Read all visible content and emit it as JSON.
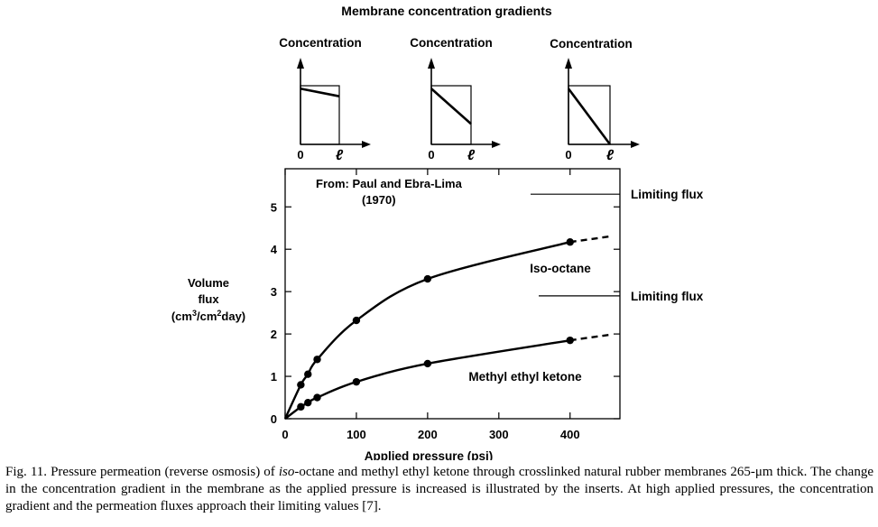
{
  "figure": {
    "title": "Membrane concentration gradients",
    "inserts": [
      {
        "label": "Concentration",
        "axis_start": "0",
        "axis_end": "ℓ",
        "profile": [
          0.95,
          0.82
        ]
      },
      {
        "label": "Concentration",
        "axis_start": "0",
        "axis_end": "ℓ",
        "profile": [
          0.95,
          0.35
        ]
      },
      {
        "label": "Concentration",
        "axis_start": "0",
        "axis_end": "ℓ",
        "profile": [
          0.95,
          0.0
        ]
      }
    ]
  },
  "chart_data": {
    "type": "line",
    "source_note": [
      "From: Paul and Ebra-Lima",
      "(1970)"
    ],
    "xlabel": "Applied pressure (psi)",
    "ylabel": [
      "Volume",
      "flux"
    ],
    "ylabel_unit": {
      "a": "(cm",
      "sup1": "3",
      "b": "/cm",
      "sup2": "2",
      "c": "day)"
    },
    "xlim": [
      0,
      470
    ],
    "ylim": [
      0,
      5.9
    ],
    "xticks": [
      0,
      100,
      200,
      300,
      400
    ],
    "yticks": [
      0,
      1,
      2,
      3,
      4,
      5
    ],
    "series": [
      {
        "name": "Iso-octane",
        "points": [
          [
            0,
            0
          ],
          [
            22,
            0.8
          ],
          [
            32,
            1.05
          ],
          [
            45,
            1.4
          ],
          [
            100,
            2.32
          ],
          [
            200,
            3.3
          ],
          [
            400,
            4.17
          ]
        ],
        "dashed_extension": [
          [
            400,
            4.17
          ],
          [
            455,
            4.3
          ]
        ],
        "limiting_flux": 5.3
      },
      {
        "name": "Methyl ethyl ketone",
        "points": [
          [
            0,
            0
          ],
          [
            22,
            0.28
          ],
          [
            32,
            0.38
          ],
          [
            45,
            0.5
          ],
          [
            100,
            0.87
          ],
          [
            200,
            1.3
          ],
          [
            400,
            1.85
          ]
        ],
        "dashed_extension": [
          [
            400,
            1.85
          ],
          [
            455,
            1.98
          ]
        ],
        "limiting_flux": 2.9
      }
    ],
    "annotations": {
      "limiting_flux_upper": "Limiting flux",
      "limiting_flux_lower": "Limiting flux"
    }
  },
  "caption": {
    "prefix": "Fig. 11. Pressure permeation (reverse osmosis) of ",
    "italic": "iso",
    "suffix": "-octane and methyl ethyl ketone through crosslinked natural rubber membranes 265-μm thick. The change in the concentration gradient in the membrane as the applied pressure is increased is illustrated by the inserts. At high applied pressures, the concentration gradient and the permeation fluxes approach their limiting values [7]."
  }
}
